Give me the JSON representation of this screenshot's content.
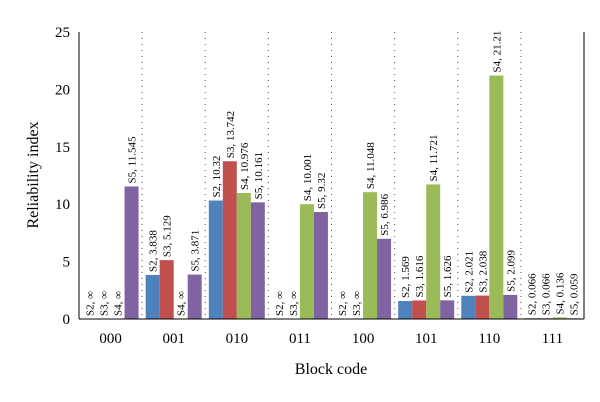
{
  "chart_data": {
    "type": "bar",
    "title": "",
    "xlabel": "Block code",
    "ylabel": "Reliability index",
    "ylim": [
      0,
      25
    ],
    "yticks": [
      0,
      5,
      10,
      15,
      20,
      25
    ],
    "grid": "dotted vertical separators between groups",
    "legend": "none",
    "categories": [
      "000",
      "001",
      "010",
      "011",
      "100",
      "101",
      "110",
      "111"
    ],
    "series": [
      {
        "name": "S2",
        "color": "#4f81bd",
        "values": [
          null,
          3.838,
          10.32,
          null,
          null,
          1.569,
          2.021,
          0.066
        ]
      },
      {
        "name": "S3",
        "color": "#c0504d",
        "values": [
          null,
          5.129,
          13.742,
          null,
          null,
          1.616,
          2.038,
          0.066
        ]
      },
      {
        "name": "S4",
        "color": "#9bbb59",
        "values": [
          null,
          null,
          10.976,
          10.001,
          11.048,
          11.721,
          21.21,
          0.136
        ]
      },
      {
        "name": "S5",
        "color": "#8064a2",
        "values": [
          11.545,
          3.871,
          10.161,
          9.32,
          6.986,
          1.626,
          2.099,
          0.059
        ]
      }
    ],
    "data_labels": [
      [
        "S2, ∞",
        "S3, ∞",
        "S4, ∞",
        "S5, 11.545"
      ],
      [
        "S2, 3.838",
        "S3, 5.129",
        "S4, ∞",
        "S5, 3.871"
      ],
      [
        "S2, 10.32",
        "S3, 13.742",
        "S4, 10.976",
        "S5, 10.161"
      ],
      [
        "S2, ∞",
        "S3, ∞",
        "S4, 10.001",
        "S5, 9.32"
      ],
      [
        "S2, ∞",
        "S3, ∞",
        "S4, 11.048",
        "S5, 6.986"
      ],
      [
        "S2, 1.569",
        "S3, 1.616",
        "S4, 11.721",
        "S5, 1.626"
      ],
      [
        "S2, 2.021",
        "S3, 2.038",
        "S4, 21.21",
        "S5, 2.099"
      ],
      [
        "S2, 0.066",
        "S3, 0.066",
        "S4, 0.136",
        "S5, 0.059"
      ]
    ]
  }
}
